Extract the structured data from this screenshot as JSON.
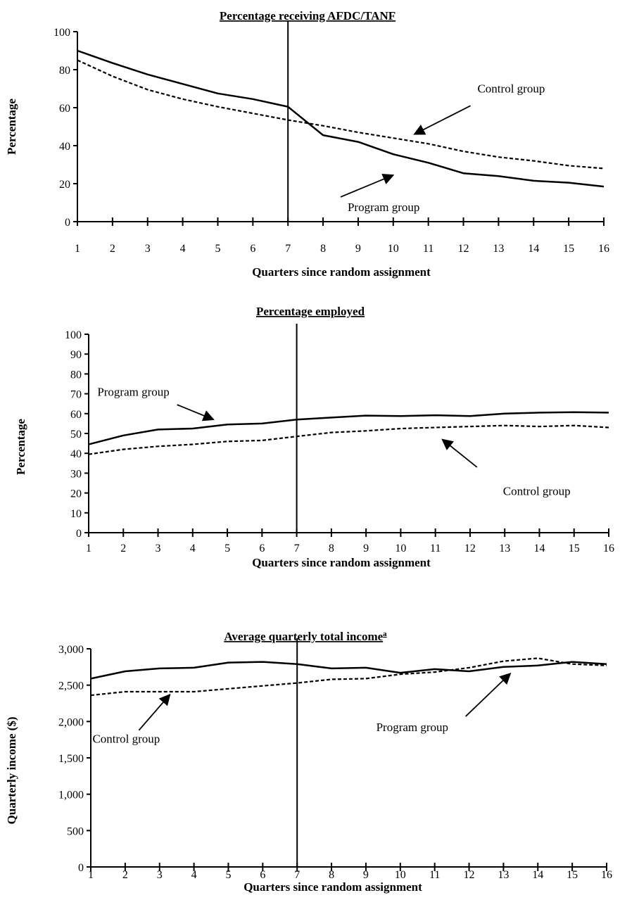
{
  "chart_data": [
    {
      "type": "line",
      "title": "Percentage receiving AFDC/TANF",
      "xlabel": "Quarters since random assignment",
      "ylabel": "Percentage",
      "x": [
        1,
        2,
        3,
        4,
        5,
        6,
        7,
        8,
        9,
        10,
        11,
        12,
        13,
        14,
        15,
        16
      ],
      "xlim": [
        1,
        16
      ],
      "ylim": [
        0,
        100
      ],
      "yticks": [
        "0",
        "20",
        "40",
        "60",
        "80",
        "100"
      ],
      "reference_line_x": 7,
      "grid": false,
      "legend": "none",
      "series": [
        {
          "name": "Program group",
          "style": "solid",
          "values": [
            90,
            83.5,
            77.5,
            72.5,
            67.5,
            64.5,
            60.5,
            45.5,
            42,
            35.5,
            31,
            25.5,
            24,
            21.5,
            20.5,
            18.5
          ]
        },
        {
          "name": "Control group",
          "style": "dashed",
          "values": [
            85,
            76.5,
            69.5,
            64.5,
            60.5,
            57,
            53.5,
            50.5,
            47,
            44,
            41,
            37,
            34,
            32,
            29.5,
            28
          ]
        }
      ],
      "annotations": [
        {
          "text": "Control group",
          "series": "Control group",
          "label_at": [
            12.4,
            68
          ],
          "arrow_from": [
            12.2,
            61
          ],
          "arrow_to": [
            10.6,
            46
          ]
        },
        {
          "text": "Program group",
          "series": "Program group",
          "label_at": [
            8.7,
            5.5
          ],
          "arrow_from": [
            8.5,
            13
          ],
          "arrow_to": [
            10,
            24.5
          ]
        }
      ]
    },
    {
      "type": "line",
      "title": "Percentage employed",
      "xlabel": "Quarters since random assignment",
      "ylabel": "Percentage",
      "x": [
        1,
        2,
        3,
        4,
        5,
        6,
        7,
        8,
        9,
        10,
        11,
        12,
        13,
        14,
        15,
        16
      ],
      "xlim": [
        1,
        16
      ],
      "ylim": [
        0,
        100
      ],
      "yticks": [
        "0",
        "10",
        "20",
        "30",
        "40",
        "50",
        "60",
        "70",
        "80",
        "90",
        "100"
      ],
      "reference_line_x": 7,
      "grid": false,
      "legend": "none",
      "series": [
        {
          "name": "Program group",
          "style": "solid",
          "values": [
            44.5,
            49,
            52,
            52.5,
            54.5,
            55,
            57,
            58,
            59,
            58.8,
            59.2,
            58.8,
            60,
            60.5,
            60.7,
            60.5
          ]
        },
        {
          "name": "Control group",
          "style": "dashed",
          "values": [
            39.5,
            42,
            43.5,
            44.5,
            46,
            46.5,
            48.5,
            50.5,
            51.3,
            52.5,
            53,
            53.5,
            54,
            53.5,
            54,
            53
          ]
        }
      ],
      "annotations": [
        {
          "text": "Program group",
          "series": "Program group",
          "label_at": [
            1.25,
            69
          ],
          "arrow_from": [
            3.55,
            64.5
          ],
          "arrow_to": [
            4.6,
            57
          ]
        },
        {
          "text": "Control group",
          "series": "Control group",
          "label_at": [
            12.95,
            19
          ],
          "arrow_from": [
            12.2,
            33
          ],
          "arrow_to": [
            11.2,
            47
          ]
        }
      ]
    },
    {
      "type": "line",
      "title": "Average quarterly total income",
      "title_superscript": "a",
      "xlabel": "Quarters since random assignment",
      "ylabel": "Quarterly income ($)",
      "x": [
        1,
        2,
        3,
        4,
        5,
        6,
        7,
        8,
        9,
        10,
        11,
        12,
        13,
        14,
        15,
        16
      ],
      "xlim": [
        1,
        16
      ],
      "ylim": [
        0,
        3000
      ],
      "yticks": [
        "0",
        "500",
        "1,000",
        "1,500",
        "2,000",
        "2,500",
        "3,000"
      ],
      "reference_line_x": 7,
      "grid": false,
      "legend": "none",
      "series": [
        {
          "name": "Program group",
          "style": "solid",
          "values": [
            2590,
            2690,
            2730,
            2740,
            2810,
            2820,
            2790,
            2730,
            2740,
            2670,
            2720,
            2690,
            2750,
            2770,
            2820,
            2790
          ]
        },
        {
          "name": "Control group",
          "style": "dashed",
          "values": [
            2360,
            2410,
            2410,
            2410,
            2450,
            2490,
            2530,
            2580,
            2590,
            2650,
            2680,
            2740,
            2830,
            2870,
            2790,
            2770
          ]
        }
      ],
      "annotations": [
        {
          "text": "Control group",
          "series": "Control group",
          "label_at": [
            1.05,
            1710
          ],
          "arrow_from": [
            2.4,
            1880
          ],
          "arrow_to": [
            3.3,
            2370
          ]
        },
        {
          "text": "Program group",
          "series": "Program group",
          "label_at": [
            9.3,
            1870
          ],
          "arrow_from": [
            11.9,
            2070
          ],
          "arrow_to": [
            13.2,
            2660
          ]
        }
      ]
    }
  ]
}
